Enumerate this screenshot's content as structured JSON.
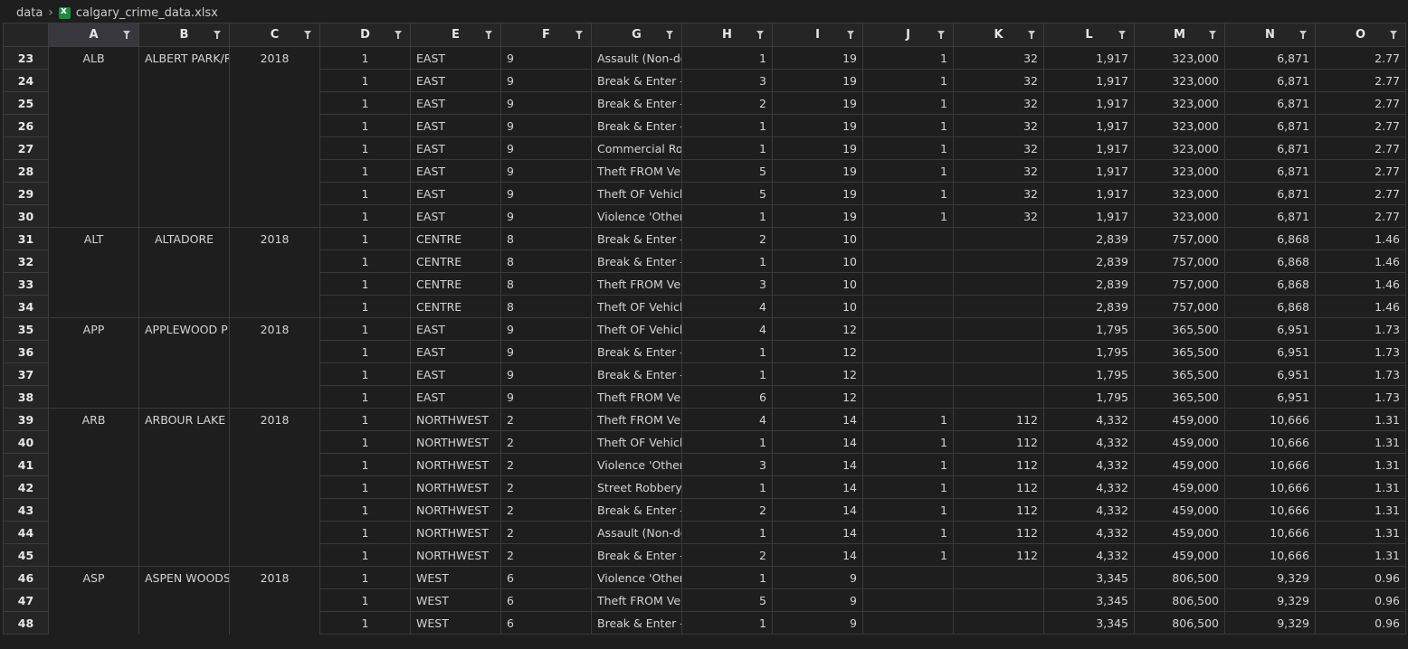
{
  "breadcrumb": {
    "folder": "data",
    "file": "calgary_crime_data.xlsx"
  },
  "columns": [
    "A",
    "B",
    "C",
    "D",
    "E",
    "F",
    "G",
    "H",
    "I",
    "J",
    "K",
    "L",
    "M",
    "N",
    "O"
  ],
  "rows": [
    {
      "n": "23",
      "a": "ALB",
      "b": "ALBERT PARK/R",
      "c": "2018",
      "d": "1",
      "e": "EAST",
      "f": "9",
      "g": "Assault (Non-do",
      "h": "1",
      "i": "19",
      "j": "1",
      "k": "32",
      "l": "1,917",
      "m": "323,000",
      "nn": "6,871",
      "o": "2.77"
    },
    {
      "n": "24",
      "a": "",
      "b": "",
      "c": "",
      "d": "1",
      "e": "EAST",
      "f": "9",
      "g": "Break & Enter - C",
      "h": "3",
      "i": "19",
      "j": "1",
      "k": "32",
      "l": "1,917",
      "m": "323,000",
      "nn": "6,871",
      "o": "2.77"
    },
    {
      "n": "25",
      "a": "",
      "b": "",
      "c": "",
      "d": "1",
      "e": "EAST",
      "f": "9",
      "g": "Break & Enter - D",
      "h": "2",
      "i": "19",
      "j": "1",
      "k": "32",
      "l": "1,917",
      "m": "323,000",
      "nn": "6,871",
      "o": "2.77"
    },
    {
      "n": "26",
      "a": "",
      "b": "",
      "c": "",
      "d": "1",
      "e": "EAST",
      "f": "9",
      "g": "Break & Enter - O",
      "h": "1",
      "i": "19",
      "j": "1",
      "k": "32",
      "l": "1,917",
      "m": "323,000",
      "nn": "6,871",
      "o": "2.77"
    },
    {
      "n": "27",
      "a": "",
      "b": "",
      "c": "",
      "d": "1",
      "e": "EAST",
      "f": "9",
      "g": "Commercial Rob",
      "h": "1",
      "i": "19",
      "j": "1",
      "k": "32",
      "l": "1,917",
      "m": "323,000",
      "nn": "6,871",
      "o": "2.77"
    },
    {
      "n": "28",
      "a": "",
      "b": "",
      "c": "",
      "d": "1",
      "e": "EAST",
      "f": "9",
      "g": "Theft FROM Veh",
      "h": "5",
      "i": "19",
      "j": "1",
      "k": "32",
      "l": "1,917",
      "m": "323,000",
      "nn": "6,871",
      "o": "2.77"
    },
    {
      "n": "29",
      "a": "",
      "b": "",
      "c": "",
      "d": "1",
      "e": "EAST",
      "f": "9",
      "g": "Theft OF Vehicle",
      "h": "5",
      "i": "19",
      "j": "1",
      "k": "32",
      "l": "1,917",
      "m": "323,000",
      "nn": "6,871",
      "o": "2.77"
    },
    {
      "n": "30",
      "a": "",
      "b": "",
      "c": "",
      "d": "1",
      "e": "EAST",
      "f": "9",
      "g": "Violence  'Other",
      "h": "1",
      "i": "19",
      "j": "1",
      "k": "32",
      "l": "1,917",
      "m": "323,000",
      "nn": "6,871",
      "o": "2.77"
    },
    {
      "n": "31",
      "a": "ALT",
      "b": "ALTADORE",
      "c": "2018",
      "d": "1",
      "e": "CENTRE",
      "f": "8",
      "g": "Break & Enter - C",
      "h": "2",
      "i": "10",
      "j": "",
      "k": "",
      "l": "2,839",
      "m": "757,000",
      "nn": "6,868",
      "o": "1.46"
    },
    {
      "n": "32",
      "a": "",
      "b": "",
      "c": "",
      "d": "1",
      "e": "CENTRE",
      "f": "8",
      "g": "Break & Enter - D",
      "h": "1",
      "i": "10",
      "j": "",
      "k": "",
      "l": "2,839",
      "m": "757,000",
      "nn": "6,868",
      "o": "1.46"
    },
    {
      "n": "33",
      "a": "",
      "b": "",
      "c": "",
      "d": "1",
      "e": "CENTRE",
      "f": "8",
      "g": "Theft FROM Veh",
      "h": "3",
      "i": "10",
      "j": "",
      "k": "",
      "l": "2,839",
      "m": "757,000",
      "nn": "6,868",
      "o": "1.46"
    },
    {
      "n": "34",
      "a": "",
      "b": "",
      "c": "",
      "d": "1",
      "e": "CENTRE",
      "f": "8",
      "g": "Theft OF Vehicle",
      "h": "4",
      "i": "10",
      "j": "",
      "k": "",
      "l": "2,839",
      "m": "757,000",
      "nn": "6,868",
      "o": "1.46"
    },
    {
      "n": "35",
      "a": "APP",
      "b": "APPLEWOOD P",
      "c": "2018",
      "d": "1",
      "e": "EAST",
      "f": "9",
      "g": "Theft OF Vehicle",
      "h": "4",
      "i": "12",
      "j": "",
      "k": "",
      "l": "1,795",
      "m": "365,500",
      "nn": "6,951",
      "o": "1.73"
    },
    {
      "n": "36",
      "a": "",
      "b": "",
      "c": "",
      "d": "1",
      "e": "EAST",
      "f": "9",
      "g": "Break & Enter - D",
      "h": "1",
      "i": "12",
      "j": "",
      "k": "",
      "l": "1,795",
      "m": "365,500",
      "nn": "6,951",
      "o": "1.73"
    },
    {
      "n": "37",
      "a": "",
      "b": "",
      "c": "",
      "d": "1",
      "e": "EAST",
      "f": "9",
      "g": "Break & Enter - O",
      "h": "1",
      "i": "12",
      "j": "",
      "k": "",
      "l": "1,795",
      "m": "365,500",
      "nn": "6,951",
      "o": "1.73"
    },
    {
      "n": "38",
      "a": "",
      "b": "",
      "c": "",
      "d": "1",
      "e": "EAST",
      "f": "9",
      "g": "Theft FROM Veh",
      "h": "6",
      "i": "12",
      "j": "",
      "k": "",
      "l": "1,795",
      "m": "365,500",
      "nn": "6,951",
      "o": "1.73"
    },
    {
      "n": "39",
      "a": "ARB",
      "b": "ARBOUR LAKE",
      "c": "2018",
      "d": "1",
      "e": "NORTHWEST",
      "f": "2",
      "g": "Theft FROM Veh",
      "h": "4",
      "i": "14",
      "j": "1",
      "k": "112",
      "l": "4,332",
      "m": "459,000",
      "nn": "10,666",
      "o": "1.31"
    },
    {
      "n": "40",
      "a": "",
      "b": "",
      "c": "",
      "d": "1",
      "e": "NORTHWEST",
      "f": "2",
      "g": "Theft OF Vehicle",
      "h": "1",
      "i": "14",
      "j": "1",
      "k": "112",
      "l": "4,332",
      "m": "459,000",
      "nn": "10,666",
      "o": "1.31"
    },
    {
      "n": "41",
      "a": "",
      "b": "",
      "c": "",
      "d": "1",
      "e": "NORTHWEST",
      "f": "2",
      "g": "Violence  'Other",
      "h": "3",
      "i": "14",
      "j": "1",
      "k": "112",
      "l": "4,332",
      "m": "459,000",
      "nn": "10,666",
      "o": "1.31"
    },
    {
      "n": "42",
      "a": "",
      "b": "",
      "c": "",
      "d": "1",
      "e": "NORTHWEST",
      "f": "2",
      "g": "Street Robbery",
      "h": "1",
      "i": "14",
      "j": "1",
      "k": "112",
      "l": "4,332",
      "m": "459,000",
      "nn": "10,666",
      "o": "1.31"
    },
    {
      "n": "43",
      "a": "",
      "b": "",
      "c": "",
      "d": "1",
      "e": "NORTHWEST",
      "f": "2",
      "g": "Break & Enter - D",
      "h": "2",
      "i": "14",
      "j": "1",
      "k": "112",
      "l": "4,332",
      "m": "459,000",
      "nn": "10,666",
      "o": "1.31"
    },
    {
      "n": "44",
      "a": "",
      "b": "",
      "c": "",
      "d": "1",
      "e": "NORTHWEST",
      "f": "2",
      "g": "Assault (Non-do",
      "h": "1",
      "i": "14",
      "j": "1",
      "k": "112",
      "l": "4,332",
      "m": "459,000",
      "nn": "10,666",
      "o": "1.31"
    },
    {
      "n": "45",
      "a": "",
      "b": "",
      "c": "",
      "d": "1",
      "e": "NORTHWEST",
      "f": "2",
      "g": "Break & Enter - C",
      "h": "2",
      "i": "14",
      "j": "1",
      "k": "112",
      "l": "4,332",
      "m": "459,000",
      "nn": "10,666",
      "o": "1.31"
    },
    {
      "n": "46",
      "a": "ASP",
      "b": "ASPEN WOODS",
      "c": "2018",
      "d": "1",
      "e": "WEST",
      "f": "6",
      "g": "Violence  'Other",
      "h": "1",
      "i": "9",
      "j": "",
      "k": "",
      "l": "3,345",
      "m": "806,500",
      "nn": "9,329",
      "o": "0.96"
    },
    {
      "n": "47",
      "a": "",
      "b": "",
      "c": "",
      "d": "1",
      "e": "WEST",
      "f": "6",
      "g": "Theft FROM Veh",
      "h": "5",
      "i": "9",
      "j": "",
      "k": "",
      "l": "3,345",
      "m": "806,500",
      "nn": "9,329",
      "o": "0.96"
    },
    {
      "n": "48",
      "a": "",
      "b": "",
      "c": "",
      "d": "1",
      "e": "WEST",
      "f": "6",
      "g": "Break & Enter - D",
      "h": "1",
      "i": "9",
      "j": "",
      "k": "",
      "l": "3,345",
      "m": "806,500",
      "nn": "9,329",
      "o": "0.96"
    }
  ]
}
